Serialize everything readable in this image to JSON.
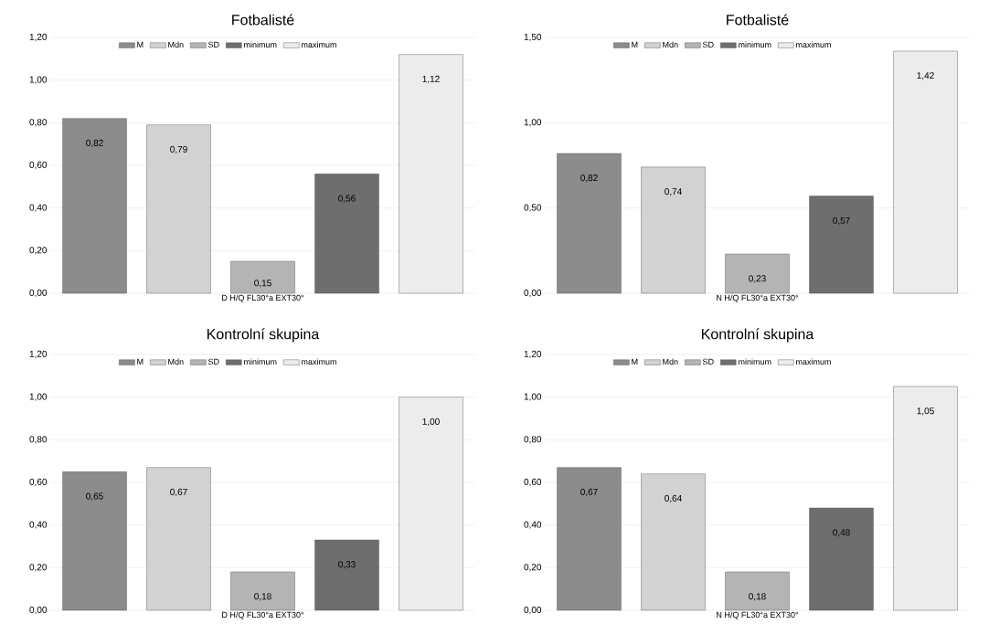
{
  "chart_data": [
    {
      "type": "bar",
      "title": "Fotbalisté",
      "xlabel": "D H/Q FL30°a EXT30°",
      "categories": [
        null
      ],
      "legend": "top",
      "grid": "y",
      "ylim": [
        0,
        1.2
      ],
      "yticks": [
        {
          "value": 0,
          "label": "0,00"
        },
        {
          "value": 0.2,
          "label": "0,20"
        },
        {
          "value": 0.4,
          "label": "0,40"
        },
        {
          "value": 0.6,
          "label": "0,60"
        },
        {
          "value": 0.8,
          "label": "0,80"
        },
        {
          "value": 1.0,
          "label": "1,00"
        },
        {
          "value": 1.2,
          "label": "1,20"
        }
      ],
      "series": [
        {
          "name": "M",
          "color": "#8c8c8c",
          "values": [
            0.82
          ],
          "value_labels": [
            "0,82"
          ]
        },
        {
          "name": "Mdn",
          "color": "#d2d2d2",
          "values": [
            0.79
          ],
          "value_labels": [
            "0,79"
          ]
        },
        {
          "name": "SD",
          "color": "#b4b4b4",
          "values": [
            0.15
          ],
          "value_labels": [
            "0,15"
          ]
        },
        {
          "name": "minimum",
          "color": "#6e6e6e",
          "values": [
            0.56
          ],
          "value_labels": [
            "0,56"
          ]
        },
        {
          "name": "maximum",
          "color": "#ececec",
          "values": [
            1.12
          ],
          "value_labels": [
            "1,12"
          ]
        }
      ]
    },
    {
      "type": "bar",
      "title": "Fotbalisté",
      "xlabel": "N H/Q FL30°a EXT30°",
      "categories": [
        null
      ],
      "legend": "top",
      "grid": "y",
      "ylim": [
        0,
        1.5
      ],
      "yticks": [
        {
          "value": 0,
          "label": "0,00"
        },
        {
          "value": 0.5,
          "label": "0,50"
        },
        {
          "value": 1.0,
          "label": "1,00"
        },
        {
          "value": 1.5,
          "label": "1,50"
        }
      ],
      "series": [
        {
          "name": "M",
          "color": "#8c8c8c",
          "values": [
            0.82
          ],
          "value_labels": [
            "0,82"
          ]
        },
        {
          "name": "Mdn",
          "color": "#d2d2d2",
          "values": [
            0.74
          ],
          "value_labels": [
            "0,74"
          ]
        },
        {
          "name": "SD",
          "color": "#b4b4b4",
          "values": [
            0.23
          ],
          "value_labels": [
            "0,23"
          ]
        },
        {
          "name": "minimum",
          "color": "#6e6e6e",
          "values": [
            0.57
          ],
          "value_labels": [
            "0,57"
          ]
        },
        {
          "name": "maximum",
          "color": "#ececec",
          "values": [
            1.42
          ],
          "value_labels": [
            "1,42"
          ]
        }
      ]
    },
    {
      "type": "bar",
      "title": "Kontrolní skupina",
      "xlabel": "D H/Q FL30°a EXT30°",
      "categories": [
        null
      ],
      "legend": "top",
      "grid": "y",
      "ylim": [
        0,
        1.2
      ],
      "yticks": [
        {
          "value": 0,
          "label": "0,00"
        },
        {
          "value": 0.2,
          "label": "0,20"
        },
        {
          "value": 0.4,
          "label": "0,40"
        },
        {
          "value": 0.6,
          "label": "0,60"
        },
        {
          "value": 0.8,
          "label": "0,80"
        },
        {
          "value": 1.0,
          "label": "1,00"
        },
        {
          "value": 1.2,
          "label": "1,20"
        }
      ],
      "series": [
        {
          "name": "M",
          "color": "#8c8c8c",
          "values": [
            0.65
          ],
          "value_labels": [
            "0,65"
          ]
        },
        {
          "name": "Mdn",
          "color": "#d2d2d2",
          "values": [
            0.67
          ],
          "value_labels": [
            "0,67"
          ]
        },
        {
          "name": "SD",
          "color": "#b4b4b4",
          "values": [
            0.18
          ],
          "value_labels": [
            "0,18"
          ]
        },
        {
          "name": "minimum",
          "color": "#6e6e6e",
          "values": [
            0.33
          ],
          "value_labels": [
            "0,33"
          ]
        },
        {
          "name": "maximum",
          "color": "#ececec",
          "values": [
            1.0
          ],
          "value_labels": [
            "1,00"
          ]
        }
      ]
    },
    {
      "type": "bar",
      "title": "Kontrolní skupina",
      "xlabel": "N H/Q FL30°a EXT30°",
      "categories": [
        null
      ],
      "legend": "top",
      "grid": "y",
      "ylim": [
        0,
        1.2
      ],
      "yticks": [
        {
          "value": 0,
          "label": "0,00"
        },
        {
          "value": 0.2,
          "label": "0,20"
        },
        {
          "value": 0.4,
          "label": "0,40"
        },
        {
          "value": 0.6,
          "label": "0,60"
        },
        {
          "value": 0.8,
          "label": "0,80"
        },
        {
          "value": 1.0,
          "label": "1,00"
        },
        {
          "value": 1.2,
          "label": "1,20"
        }
      ],
      "series": [
        {
          "name": "M",
          "color": "#8c8c8c",
          "values": [
            0.67
          ],
          "value_labels": [
            "0,67"
          ]
        },
        {
          "name": "Mdn",
          "color": "#d2d2d2",
          "values": [
            0.64
          ],
          "value_labels": [
            "0,64"
          ]
        },
        {
          "name": "SD",
          "color": "#b4b4b4",
          "values": [
            0.18
          ],
          "value_labels": [
            "0,18"
          ]
        },
        {
          "name": "minimum",
          "color": "#6e6e6e",
          "values": [
            0.48
          ],
          "value_labels": [
            "0,48"
          ]
        },
        {
          "name": "maximum",
          "color": "#ececec",
          "values": [
            1.05
          ],
          "value_labels": [
            "1,05"
          ]
        }
      ]
    }
  ]
}
